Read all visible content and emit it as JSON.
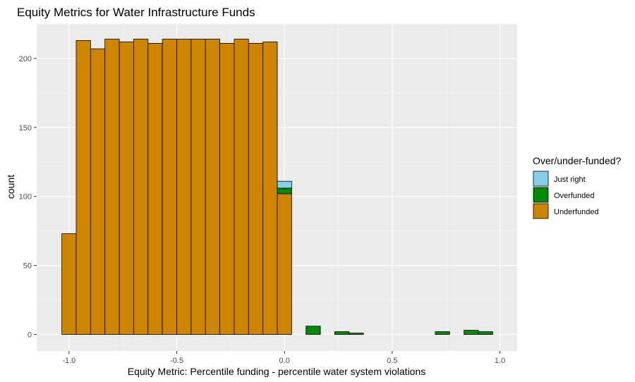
{
  "chart_data": {
    "type": "bar",
    "stacked": true,
    "title": "Equity Metrics for Water Infrastructure Funds",
    "xlabel": "Equity Metric: Percentile funding - percentile water system violations",
    "ylabel": "count",
    "xlim": [
      -1.15,
      1.08
    ],
    "ylim": [
      -12,
      225
    ],
    "x_ticks": [
      -1.0,
      -0.5,
      0.0,
      0.5,
      1.0
    ],
    "x_tick_labels": [
      "-1.0",
      "-0.5",
      "0.0",
      "0.5",
      "1.0"
    ],
    "y_ticks": [
      0,
      50,
      100,
      150,
      200
    ],
    "y_tick_labels": [
      "0",
      "50",
      "100",
      "150",
      "200"
    ],
    "bin_width": 0.0667,
    "x": [
      -1.0,
      -0.9333,
      -0.8667,
      -0.8,
      -0.7333,
      -0.6667,
      -0.6,
      -0.5333,
      -0.4667,
      -0.4,
      -0.3333,
      -0.2667,
      -0.2,
      -0.1333,
      -0.0667,
      0.0,
      0.0667,
      0.1333,
      0.2,
      0.2667,
      0.3333,
      0.4,
      0.4667,
      0.5333,
      0.6,
      0.6667,
      0.7333,
      0.8,
      0.8667,
      0.9333
    ],
    "series": [
      {
        "name": "Underfunded",
        "color": "#CD8500",
        "values": [
          73,
          213,
          207,
          214,
          212,
          214,
          211,
          214,
          214,
          214,
          214,
          211,
          214,
          211,
          212,
          102,
          0,
          0,
          0,
          0,
          0,
          0,
          0,
          0,
          0,
          0,
          0,
          0,
          0,
          0
        ]
      },
      {
        "name": "Overfunded",
        "color": "#008B00",
        "values": [
          0,
          0,
          0,
          0,
          0,
          0,
          0,
          0,
          0,
          0,
          0,
          0,
          0,
          0,
          0,
          4,
          0,
          6,
          0,
          2,
          1,
          0,
          0,
          0,
          0,
          0,
          2,
          0,
          3,
          2
        ]
      },
      {
        "name": "Just right",
        "color": "#87CEEB",
        "values": [
          0,
          0,
          0,
          0,
          0,
          0,
          0,
          0,
          0,
          0,
          0,
          0,
          0,
          0,
          0,
          5,
          0,
          0,
          0,
          0,
          0,
          0,
          0,
          0,
          0,
          0,
          0,
          0,
          0,
          0
        ]
      }
    ],
    "legend": {
      "title": "Over/under-funded?",
      "position": "right",
      "items": [
        {
          "label": "Just right",
          "color": "#87CEEB"
        },
        {
          "label": "Overfunded",
          "color": "#008B00"
        },
        {
          "label": "Underfunded",
          "color": "#CD8500"
        }
      ]
    },
    "panel_background": "#EBEBEB",
    "grid": true
  }
}
